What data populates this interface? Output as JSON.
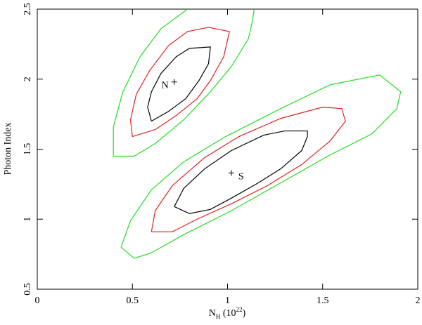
{
  "chart_data": {
    "type": "contour",
    "x_label": [
      "N",
      "H",
      " (10",
      "22",
      ")"
    ],
    "y_label": "Photon Index",
    "xlim": [
      0,
      2
    ],
    "ylim": [
      0.5,
      2.5
    ],
    "xticks": [
      0,
      0.5,
      1,
      1.5,
      2
    ],
    "yticks": [
      0.5,
      1,
      1.5,
      2,
      2.5
    ],
    "series": [
      {
        "color": "#000000",
        "x": [
          0.6,
          0.58,
          0.6,
          0.65,
          0.73,
          0.8,
          0.91,
          0.9,
          0.85,
          0.78,
          0.69,
          0.6
        ],
        "y": [
          1.7,
          1.8,
          1.91,
          2.04,
          2.16,
          2.22,
          2.23,
          2.11,
          1.99,
          1.86,
          1.77,
          1.7
        ]
      },
      {
        "color": "#e02020",
        "x": [
          0.5,
          0.49,
          0.52,
          0.59,
          0.69,
          0.79,
          0.9,
          1.01,
          0.98,
          0.91,
          0.84,
          0.73,
          0.62,
          0.5
        ],
        "y": [
          1.59,
          1.71,
          1.89,
          2.06,
          2.24,
          2.34,
          2.37,
          2.34,
          2.16,
          1.99,
          1.86,
          1.74,
          1.64,
          1.59
        ]
      },
      {
        "color": "#22dd22",
        "x": [
          0.79,
          0.65,
          0.54,
          0.45,
          0.4,
          0.4,
          0.51,
          0.62,
          0.77,
          0.91,
          1.02,
          1.11,
          1.13,
          1.14
        ],
        "y": [
          2.5,
          2.36,
          2.16,
          1.91,
          1.66,
          1.45,
          1.45,
          1.54,
          1.71,
          1.91,
          2.09,
          2.29,
          2.41,
          2.5
        ]
      },
      {
        "color": "#000000",
        "x": [
          0.72,
          0.77,
          0.88,
          1.02,
          1.19,
          1.3,
          1.42,
          1.42,
          1.39,
          1.28,
          1.15,
          1.02,
          0.91,
          0.8,
          0.72
        ],
        "y": [
          1.09,
          1.22,
          1.36,
          1.49,
          1.6,
          1.63,
          1.63,
          1.59,
          1.49,
          1.36,
          1.25,
          1.15,
          1.07,
          1.04,
          1.09
        ]
      },
      {
        "color": "#e02020",
        "x": [
          0.6,
          0.62,
          0.71,
          0.88,
          1.06,
          1.28,
          1.5,
          1.6,
          1.62,
          1.54,
          1.39,
          1.21,
          1.02,
          0.84,
          0.71,
          0.6
        ],
        "y": [
          0.91,
          1.06,
          1.24,
          1.44,
          1.59,
          1.72,
          1.8,
          1.79,
          1.7,
          1.56,
          1.39,
          1.24,
          1.11,
          1.0,
          0.91,
          0.91
        ]
      },
      {
        "color": "#22dd22",
        "x": [
          0.44,
          0.49,
          0.6,
          0.77,
          0.99,
          1.28,
          1.54,
          1.8,
          1.91,
          1.89,
          1.76,
          1.54,
          1.28,
          1.02,
          0.77,
          0.6,
          0.51,
          0.44
        ],
        "y": [
          0.8,
          0.99,
          1.21,
          1.41,
          1.59,
          1.79,
          1.96,
          2.03,
          1.91,
          1.79,
          1.61,
          1.46,
          1.26,
          1.06,
          0.89,
          0.76,
          0.72,
          0.8
        ]
      }
    ],
    "points": [
      {
        "label": "N",
        "x": 0.72,
        "y": 1.98
      },
      {
        "label": "S",
        "x": 1.02,
        "y": 1.33
      }
    ]
  }
}
